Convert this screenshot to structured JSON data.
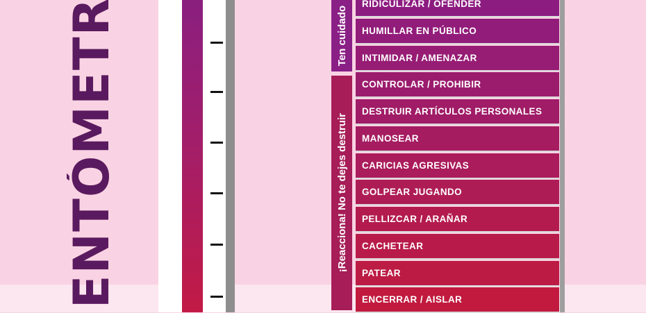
{
  "title": "ENTÓMETRO",
  "groups": [
    {
      "label": "Ten cuidado"
    },
    {
      "label": "¡Reacciona! No te dejes destruir"
    }
  ],
  "items": [
    {
      "label": "RIDICULIZAR / OFENDER",
      "color": "#8c1c80"
    },
    {
      "label": "HUMILLAR EN PÚBLICO",
      "color": "#911c7a"
    },
    {
      "label": "INTIMIDAR / AMENAZAR",
      "color": "#961c74"
    },
    {
      "label": "CONTROLAR / PROHIBIR",
      "color": "#9b1c6d"
    },
    {
      "label": "DESTRUIR ARTÍCULOS PERSONALES",
      "color": "#a01c67"
    },
    {
      "label": "MANOSEAR",
      "color": "#a51c61"
    },
    {
      "label": "CARICIAS AGRESIVAS",
      "color": "#aa1c5b"
    },
    {
      "label": "GOLPEAR JUGANDO",
      "color": "#ae1c55"
    },
    {
      "label": "PELLIZCAR / ARAÑAR",
      "color": "#b31b4f"
    },
    {
      "label": "CACHETEAR",
      "color": "#b81b49"
    },
    {
      "label": "PATEAR",
      "color": "#bc1b44"
    },
    {
      "label": "ENCERRAR / AISLAR",
      "color": "#c11a3e"
    }
  ]
}
